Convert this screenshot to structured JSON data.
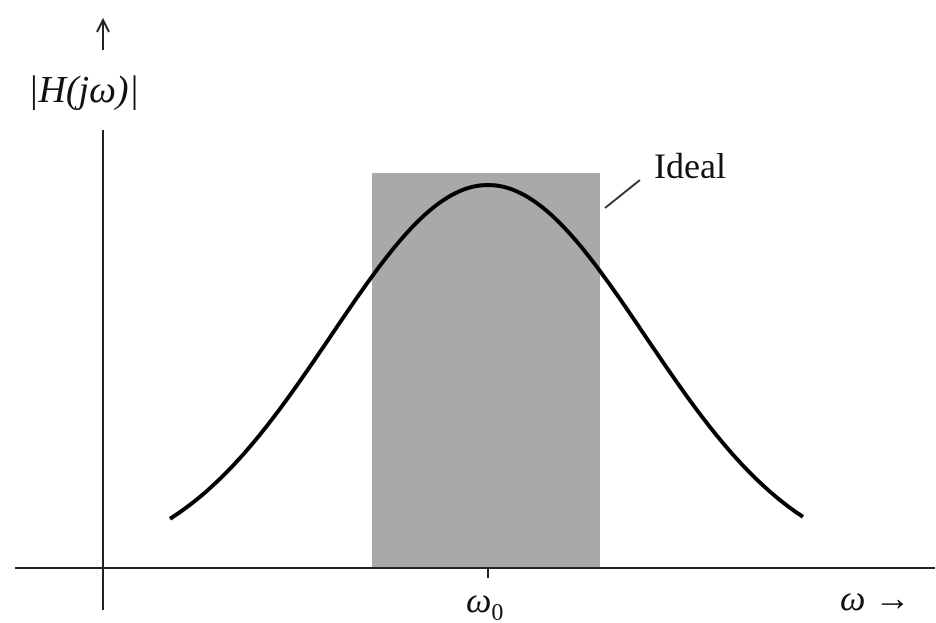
{
  "axes": {
    "y_label": "|H(jω)|",
    "x_label": "ω →"
  },
  "annotation": "Ideal",
  "center_label": {
    "symbol": "ω",
    "subscript": "0"
  }
}
